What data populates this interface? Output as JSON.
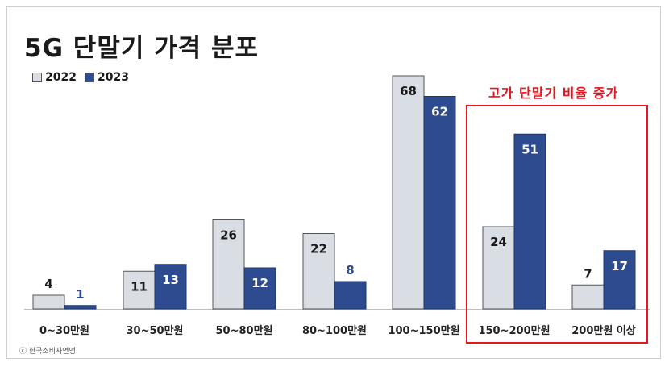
{
  "chart_data": {
    "type": "bar",
    "title": "5G 단말기 가격 분포",
    "categories": [
      "0~30만원",
      "30~50만원",
      "50~80만원",
      "80~100만원",
      "100~150만원",
      "150~200만원",
      "200만원 이상"
    ],
    "series": [
      {
        "name": "2022",
        "values": [
          4,
          11,
          26,
          22,
          68,
          24,
          7
        ],
        "color": "#d9dde4"
      },
      {
        "name": "2023",
        "values": [
          1,
          13,
          12,
          8,
          62,
          51,
          17
        ],
        "color": "#2e4b8f"
      }
    ],
    "ylim": [
      0,
      68
    ],
    "grid": false,
    "legend": "top-left",
    "annotation": "고가 단말기 비율 증가",
    "source": "ⓒ 한국소비자연맹"
  }
}
